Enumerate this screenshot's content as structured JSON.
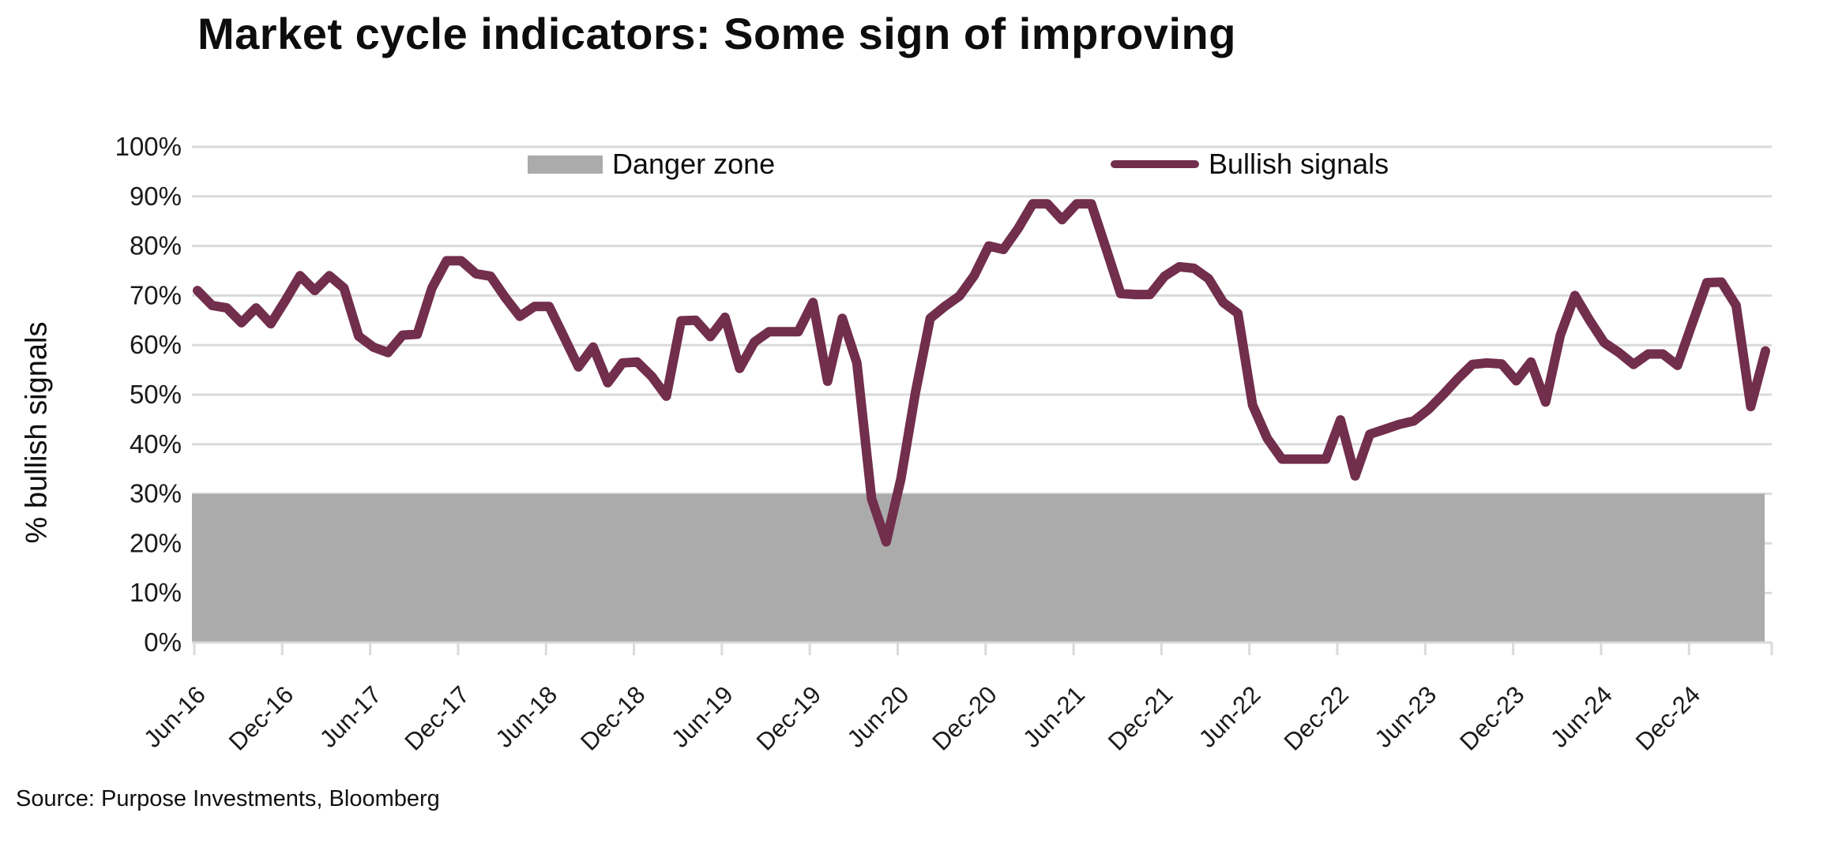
{
  "title": "Market cycle indicators: Some sign of improving",
  "source": "Source: Purpose Investments, Bloomberg",
  "y_axis_title": "% bullish signals",
  "legend": {
    "danger_label": "Danger zone",
    "bullish_label": "Bullish signals"
  },
  "colors": {
    "line": "#722E4D",
    "danger_zone": "#ABABAB",
    "gridline": "#DADADA",
    "text": "#1a1a1a"
  },
  "chart_data": {
    "type": "line",
    "title": "Market cycle indicators: Some sign of improving",
    "xlabel": "",
    "ylabel": "% bullish signals",
    "ylim": [
      0,
      100
    ],
    "grid": "horizontal",
    "legend_position": "top",
    "y_tick_labels": [
      "0%",
      "10%",
      "20%",
      "30%",
      "40%",
      "50%",
      "60%",
      "70%",
      "80%",
      "90%",
      "100%"
    ],
    "x_tick_labels": [
      "Jun-16",
      "Dec-16",
      "Jun-17",
      "Dec-17",
      "Jun-18",
      "Dec-18",
      "Jun-19",
      "Dec-19",
      "Jun-20",
      "Dec-20",
      "Jun-21",
      "Dec-21",
      "Jun-22",
      "Dec-22",
      "Jun-23",
      "Dec-23",
      "Jun-24",
      "Dec-24"
    ],
    "danger_zone": {
      "label": "Danger zone",
      "from": 0,
      "to": 30
    },
    "series": [
      {
        "name": "Bullish signals",
        "months": [
          "Jun-16",
          "Jul-16",
          "Aug-16",
          "Sep-16",
          "Oct-16",
          "Nov-16",
          "Dec-16",
          "Jan-17",
          "Feb-17",
          "Mar-17",
          "Apr-17",
          "May-17",
          "Jun-17",
          "Jul-17",
          "Aug-17",
          "Sep-17",
          "Oct-17",
          "Nov-17",
          "Dec-17",
          "Jan-18",
          "Feb-18",
          "Mar-18",
          "Apr-18",
          "May-18",
          "Jun-18",
          "Jul-18",
          "Aug-18",
          "Sep-18",
          "Oct-18",
          "Nov-18",
          "Dec-18",
          "Jan-19",
          "Feb-19",
          "Mar-19",
          "Apr-19",
          "May-19",
          "Jun-19",
          "Jul-19",
          "Aug-19",
          "Sep-19",
          "Oct-19",
          "Nov-19",
          "Dec-19",
          "Jan-20",
          "Feb-20",
          "Mar-20",
          "Apr-20",
          "May-20",
          "Jun-20",
          "Jul-20",
          "Aug-20",
          "Sep-20",
          "Oct-20",
          "Nov-20",
          "Dec-20",
          "Jan-21",
          "Feb-21",
          "Mar-21",
          "Apr-21",
          "May-21",
          "Jun-21",
          "Jul-21",
          "Aug-21",
          "Sep-21",
          "Oct-21",
          "Nov-21",
          "Dec-21",
          "Jan-22",
          "Feb-22",
          "Mar-22",
          "Apr-22",
          "May-22",
          "Jun-22",
          "Jul-22",
          "Aug-22",
          "Sep-22",
          "Oct-22",
          "Nov-22",
          "Dec-22",
          "Jan-23",
          "Feb-23",
          "Mar-23",
          "Apr-23",
          "May-23",
          "Jun-23",
          "Jul-23",
          "Aug-23",
          "Sep-23",
          "Oct-23",
          "Nov-23",
          "Dec-23",
          "Jan-24",
          "Feb-24",
          "Mar-24",
          "Apr-24",
          "May-24",
          "Jun-24",
          "Jul-24",
          "Aug-24",
          "Sep-24",
          "Oct-24",
          "Nov-24",
          "Dec-24",
          "Jan-25",
          "Feb-25",
          "Mar-25",
          "Apr-25",
          "May-25"
        ],
        "values": [
          71,
          68,
          67.5,
          64.5,
          67.5,
          64.3,
          69,
          74,
          71,
          74,
          71.5,
          61.8,
          59.6,
          58.5,
          62,
          62.2,
          71.5,
          77,
          77,
          74.4,
          73.9,
          69.6,
          65.8,
          67.8,
          67.8,
          61.7,
          55.6,
          59.6,
          52.4,
          56.4,
          56.6,
          53.7,
          49.7,
          64.9,
          65,
          61.7,
          65.6,
          55.3,
          60.6,
          62.7,
          62.7,
          62.7,
          68.6,
          52.7,
          65.4,
          56.4,
          29,
          20.3,
          33,
          50.5,
          65.4,
          67.8,
          69.9,
          74,
          80,
          79.3,
          83.5,
          88.5,
          88.5,
          85.3,
          88.5,
          88.5,
          79.5,
          70.4,
          70.2,
          70.2,
          73.9,
          75.8,
          75.5,
          73.4,
          68.6,
          66.4,
          47.9,
          41.2,
          37,
          37,
          37,
          37,
          44.9,
          33.6,
          42,
          43,
          44,
          44.7,
          47,
          50,
          53.2,
          56.1,
          56.4,
          56.2,
          52.8,
          56.6,
          48.5,
          62,
          70,
          65,
          60.5,
          58.5,
          56.1,
          58.2,
          58.2,
          55.9,
          64.3,
          72.6,
          72.7,
          68,
          47.6,
          58.8
        ]
      }
    ]
  }
}
